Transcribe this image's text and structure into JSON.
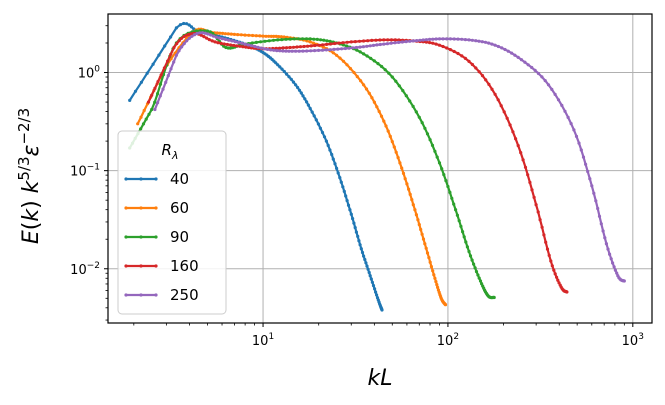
{
  "chart_data": {
    "type": "line",
    "title": "",
    "xlabel": "kL",
    "ylabel": "E(k) k^{5/3} ε^{-2/3}",
    "xscale": "log",
    "yscale": "log",
    "xlim": [
      1.45,
      1270
    ],
    "ylim": [
      0.0028,
      3.95
    ],
    "grid": true,
    "x_ticks": [
      {
        "value": 10,
        "base": "10",
        "exp": "1"
      },
      {
        "value": 100,
        "base": "10",
        "exp": "2"
      },
      {
        "value": 1000,
        "base": "10",
        "exp": "3"
      }
    ],
    "y_ticks": [
      {
        "value": 1,
        "base": "10",
        "exp": "0"
      },
      {
        "value": 0.1,
        "base": "10",
        "exp": "−1"
      },
      {
        "value": 0.01,
        "base": "10",
        "exp": "−2"
      }
    ],
    "legend": {
      "title": "R_λ",
      "title_base": "R",
      "title_sub": "λ",
      "location": "lower-left"
    },
    "series": [
      {
        "name": "40",
        "color": "#1f77b4",
        "x": [
          1.9,
          3.4,
          4.5,
          6,
          8,
          10,
          12,
          15,
          18,
          22,
          26,
          30,
          34,
          38,
          42,
          44
        ],
        "y": [
          0.52,
          2.85,
          2.6,
          2.3,
          1.95,
          1.6,
          1.2,
          0.75,
          0.43,
          0.2,
          0.085,
          0.036,
          0.016,
          0.0085,
          0.0048,
          0.0038
        ]
      },
      {
        "name": "60",
        "color": "#ff7f0e",
        "x": [
          2.1,
          2.9,
          4.2,
          5.3,
          7,
          10,
          13,
          18,
          25,
          35,
          45,
          55,
          65,
          75,
          85,
          92,
          97
        ],
        "y": [
          0.3,
          1.05,
          2.6,
          2.55,
          2.45,
          2.35,
          2.3,
          2.05,
          1.5,
          0.75,
          0.32,
          0.12,
          0.045,
          0.018,
          0.008,
          0.005,
          0.0043
        ]
      },
      {
        "name": "90",
        "color": "#2ca02c",
        "x": [
          1.9,
          2.5,
          3.4,
          5,
          6.3,
          8,
          12,
          18,
          25,
          35,
          50,
          70,
          90,
          110,
          130,
          150,
          165,
          178
        ],
        "y": [
          0.17,
          0.42,
          2.0,
          2.65,
          1.8,
          1.95,
          2.15,
          2.2,
          2.0,
          1.55,
          0.9,
          0.35,
          0.12,
          0.04,
          0.015,
          0.0075,
          0.0053,
          0.0051
        ]
      },
      {
        "name": "160",
        "color": "#d62728",
        "x": [
          2.4,
          3.3,
          4.2,
          5.5,
          7.5,
          10,
          14,
          20,
          30,
          45,
          65,
          90,
          130,
          180,
          240,
          300,
          360,
          410,
          440
        ],
        "y": [
          0.5,
          1.8,
          2.5,
          2.05,
          1.85,
          1.75,
          1.8,
          1.9,
          2.05,
          2.15,
          2.1,
          1.9,
          1.3,
          0.6,
          0.18,
          0.045,
          0.012,
          0.0065,
          0.0058
        ]
      },
      {
        "name": "250",
        "color": "#9467bd",
        "x": [
          2.6,
          3.4,
          4.4,
          5.8,
          8,
          11,
          15,
          22,
          32,
          45,
          65,
          90,
          130,
          180,
          250,
          350,
          480,
          600,
          720,
          830,
          900
        ],
        "y": [
          0.42,
          1.5,
          2.5,
          2.25,
          1.95,
          1.7,
          1.65,
          1.7,
          1.8,
          1.95,
          2.1,
          2.2,
          2.15,
          1.9,
          1.35,
          0.75,
          0.26,
          0.07,
          0.018,
          0.0085,
          0.0075
        ]
      }
    ]
  }
}
